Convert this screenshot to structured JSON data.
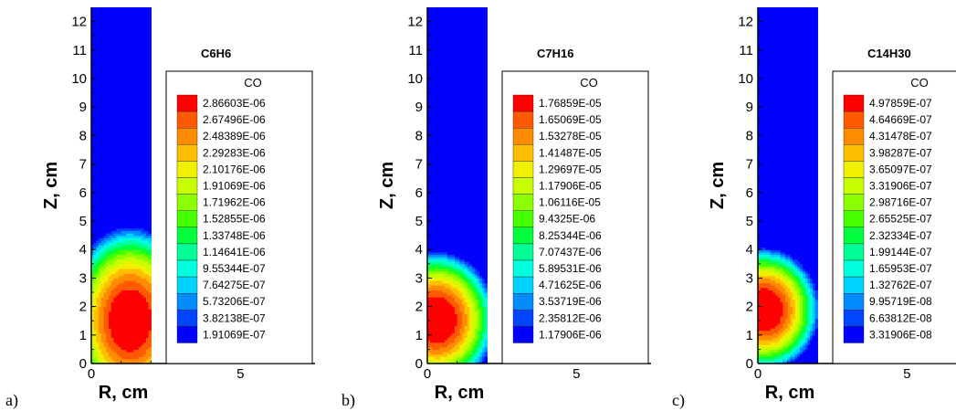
{
  "chart_data": [
    {
      "panel_label": "a)",
      "title": "C6H6",
      "type": "heatmap",
      "xlabel": "R, cm",
      "ylabel": "Z, cm",
      "xlim": [
        0,
        7.5
      ],
      "ylim": [
        0,
        12.5
      ],
      "x_ticks": [
        "0",
        "5"
      ],
      "y_ticks": [
        "0",
        "1",
        "2",
        "3",
        "4",
        "5",
        "6",
        "7",
        "8",
        "9",
        "10",
        "11",
        "12"
      ],
      "domain_r": [
        0,
        2
      ],
      "legend_title": "CO",
      "legend_levels": [
        "2.86603E-06",
        "2.67496E-06",
        "2.48389E-06",
        "2.29283E-06",
        "2.10176E-06",
        "1.91069E-06",
        "1.71962E-06",
        "1.52855E-06",
        "1.33748E-06",
        "1.14641E-06",
        "9.55344E-07",
        "7.64275E-07",
        "5.73206E-07",
        "3.82138E-07",
        "1.91069E-07"
      ],
      "legend_colors": [
        "#ff0000",
        "#ff5a00",
        "#ff8c00",
        "#ffbe00",
        "#f0f000",
        "#c8ff00",
        "#8cff00",
        "#46ff00",
        "#00ff3c",
        "#00ff96",
        "#00ffdc",
        "#00d2ff",
        "#008cff",
        "#0046ff",
        "#0000ff"
      ]
    },
    {
      "panel_label": "b)",
      "title": "C7H16",
      "type": "heatmap",
      "xlabel": "R, cm",
      "ylabel": "Z, cm",
      "xlim": [
        0,
        7.5
      ],
      "ylim": [
        0,
        12.5
      ],
      "x_ticks": [
        "0",
        "5"
      ],
      "y_ticks": [
        "0",
        "1",
        "2",
        "3",
        "4",
        "5",
        "6",
        "7",
        "8",
        "9",
        "10",
        "11",
        "12"
      ],
      "domain_r": [
        0,
        2
      ],
      "legend_title": "CO",
      "legend_levels": [
        "1.76859E-05",
        "1.65069E-05",
        "1.53278E-05",
        "1.41487E-05",
        "1.29697E-05",
        "1.17906E-05",
        "1.06116E-05",
        "9.4325E-06",
        "8.25344E-06",
        "7.07437E-06",
        "5.89531E-06",
        "4.71625E-06",
        "3.53719E-06",
        "2.35812E-06",
        "1.17906E-06"
      ],
      "legend_colors": [
        "#ff0000",
        "#ff5a00",
        "#ff8c00",
        "#ffbe00",
        "#f0f000",
        "#c8ff00",
        "#8cff00",
        "#46ff00",
        "#00ff3c",
        "#00ff96",
        "#00ffdc",
        "#00d2ff",
        "#008cff",
        "#0046ff",
        "#0000ff"
      ]
    },
    {
      "panel_label": "c)",
      "title": "C14H30",
      "type": "heatmap",
      "xlabel": "R, cm",
      "ylabel": "Z, cm",
      "xlim": [
        0,
        7.5
      ],
      "ylim": [
        0,
        12.5
      ],
      "x_ticks": [
        "0",
        "5"
      ],
      "y_ticks": [
        "0",
        "1",
        "2",
        "3",
        "4",
        "5",
        "6",
        "7",
        "8",
        "9",
        "10",
        "11",
        "12"
      ],
      "domain_r": [
        0,
        2
      ],
      "legend_title": "CO",
      "legend_levels": [
        "4.97859E-07",
        "4.64669E-07",
        "4.31478E-07",
        "3.98287E-07",
        "3.65097E-07",
        "3.31906E-07",
        "2.98716E-07",
        "2.65525E-07",
        "2.32334E-07",
        "1.99144E-07",
        "1.65953E-07",
        "1.32762E-07",
        "9.95719E-08",
        "6.63812E-08",
        "3.31906E-08"
      ],
      "legend_colors": [
        "#ff0000",
        "#ff5a00",
        "#ff8c00",
        "#ffbe00",
        "#f0f000",
        "#c8ff00",
        "#8cff00",
        "#46ff00",
        "#00ff3c",
        "#00ff96",
        "#00ffdc",
        "#00d2ff",
        "#008cff",
        "#0046ff",
        "#0000ff"
      ]
    }
  ]
}
